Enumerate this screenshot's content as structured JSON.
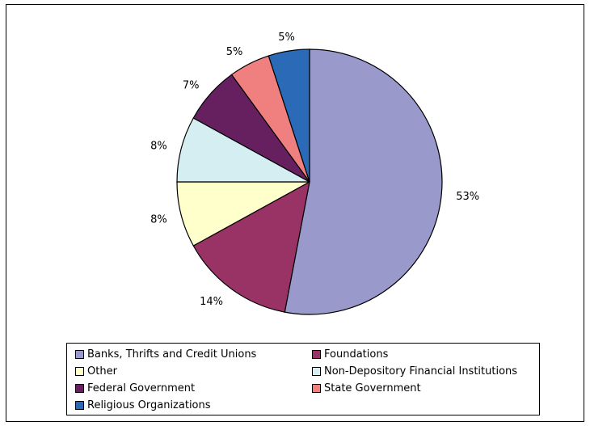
{
  "chart_data": {
    "type": "pie",
    "title": "",
    "slices": [
      {
        "label": "Banks, Thrifts and Credit Unions",
        "value": 53,
        "display": "53%",
        "color": "#9999cc"
      },
      {
        "label": "Foundations",
        "value": 14,
        "display": "14%",
        "color": "#993366"
      },
      {
        "label": "Other",
        "value": 8,
        "display": "8%",
        "color": "#ffffcc"
      },
      {
        "label": "Non-Depository Financial Institutions",
        "value": 8,
        "display": "8%",
        "color": "#d5eef2"
      },
      {
        "label": "Federal Government",
        "value": 7,
        "display": "7%",
        "color": "#66205f"
      },
      {
        "label": "State Government",
        "value": 5,
        "display": "5%",
        "color": "#f08080"
      },
      {
        "label": "Religious Organizations",
        "value": 5,
        "display": "5%",
        "color": "#2a6ab6"
      }
    ],
    "legend_placement": "bottom"
  }
}
